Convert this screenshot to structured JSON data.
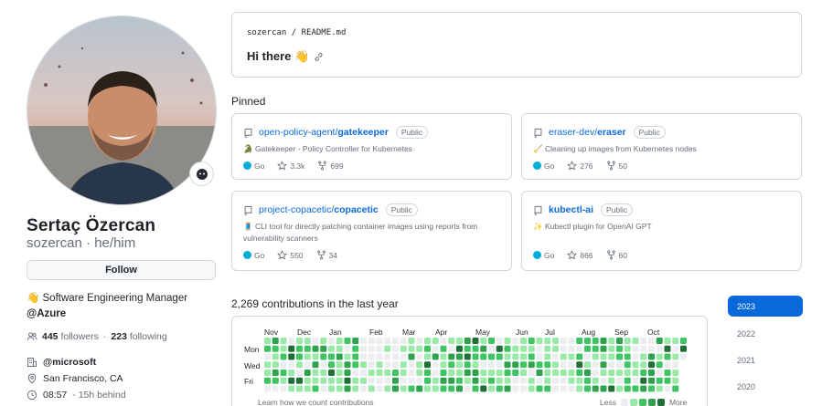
{
  "profile": {
    "name": "Sertaç Özercan",
    "username": "sozercan",
    "separator": " · ",
    "pronouns": "he/him",
    "follow_label": "Follow",
    "bio_line": "👋 Software Engineering Manager",
    "bio_org": "@Azure",
    "followers_count": "445",
    "followers_label": "followers",
    "dot": "·",
    "following_count": "223",
    "following_label": "following",
    "org": "@microsoft",
    "location": "San Francisco, CA",
    "local_time": "08:57",
    "time_note": "- 15h behind"
  },
  "readme": {
    "owner": "sozercan",
    "slash": " / ",
    "file": "README.md",
    "greeting": "Hi there 👋"
  },
  "pinned": {
    "title": "Pinned",
    "items": [
      {
        "owner": "open-policy-agent/",
        "repo": "gatekeeper",
        "visibility": "Public",
        "description": "🐊 Gatekeeper - Policy Controller for Kubernetes",
        "language": "Go",
        "lang_color": "#00ADD8",
        "stars": "3.3k",
        "forks": "699"
      },
      {
        "owner": "eraser-dev/",
        "repo": "eraser",
        "visibility": "Public",
        "description": "🧹 Cleaning up images from Kubernetes nodes",
        "language": "Go",
        "lang_color": "#00ADD8",
        "stars": "276",
        "forks": "50"
      },
      {
        "owner": "project-copacetic/",
        "repo": "copacetic",
        "visibility": "Public",
        "description": "🧵 CLI tool for directly patching container images using reports from vulnerability scanners",
        "language": "Go",
        "lang_color": "#00ADD8",
        "stars": "550",
        "forks": "34"
      },
      {
        "owner": "",
        "repo": "kubectl-ai",
        "visibility": "Public",
        "description": "✨ Kubectl plugin for OpenAI GPT",
        "language": "Go",
        "lang_color": "#00ADD8",
        "stars": "866",
        "forks": "60"
      }
    ]
  },
  "contributions": {
    "title": "2,269 contributions in the last year",
    "months": [
      "Nov",
      "Dec",
      "Jan",
      "Feb",
      "Mar",
      "Apr",
      "May",
      "Jun",
      "Jul",
      "Aug",
      "Sep",
      "Oct"
    ],
    "days": [
      "Mon",
      "Wed",
      "Fri"
    ],
    "learn_label": "Learn how we count contributions",
    "legend_less": "Less",
    "legend_more": "More",
    "colors": [
      "#ebedf0",
      "#9be9a8",
      "#40c463",
      "#30a14e",
      "#216e39"
    ]
  },
  "years": {
    "items": [
      "2023",
      "2022",
      "2021",
      "2020"
    ],
    "selected": "2023"
  }
}
